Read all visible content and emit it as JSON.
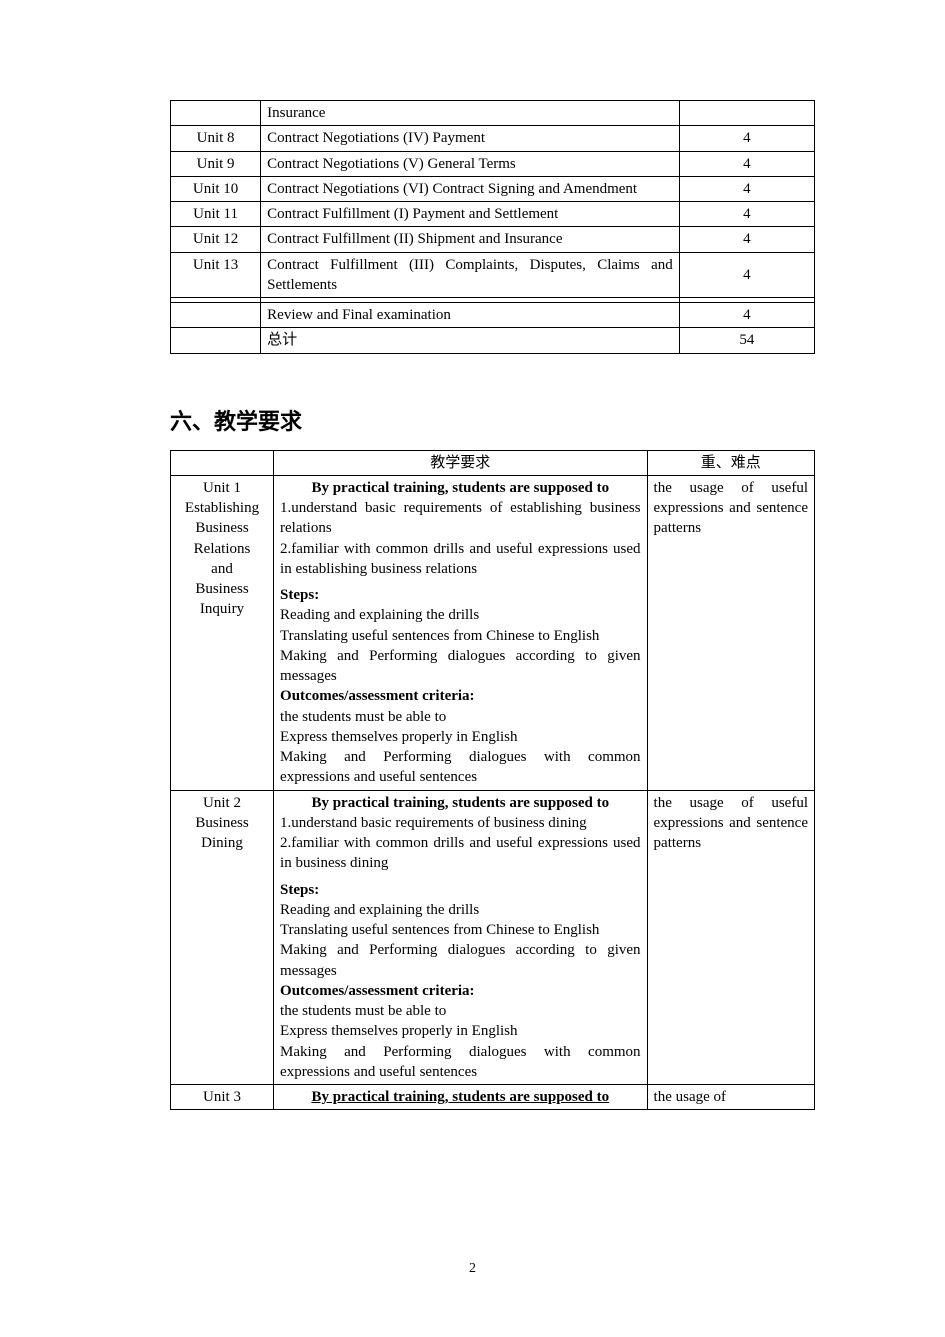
{
  "table1": {
    "rows": [
      {
        "c1": "",
        "c2": "Insurance",
        "c3": ""
      },
      {
        "c1": "Unit 8",
        "c2": "Contract Negotiations (IV) Payment",
        "c3": "4"
      },
      {
        "c1": "Unit 9",
        "c2": "Contract Negotiations (V) General Terms",
        "c3": "4"
      },
      {
        "c1": "Unit 10",
        "c2": "Contract Negotiations (VI) Contract Signing and Amendment",
        "c3": "4",
        "justify": true
      },
      {
        "c1": "Unit 11",
        "c2": "Contract Fulfillment (I) Payment and Settlement",
        "c3": "4",
        "justify": true
      },
      {
        "c1": "Unit 12",
        "c2": "Contract Fulfillment (II) Shipment and Insurance",
        "c3": "4",
        "justify": true
      },
      {
        "c1": "Unit 13",
        "c2": "Contract Fulfillment (III) Complaints, Disputes, Claims and Settlements",
        "c3": "4",
        "justify": true
      },
      {
        "c1": "",
        "c2": "",
        "c3": ""
      },
      {
        "c1": "",
        "c2": "Review and Final examination",
        "c3": "4"
      },
      {
        "c1": "",
        "c2": "总计",
        "c3": "54"
      }
    ]
  },
  "heading": "六、教学要求",
  "table2": {
    "head": {
      "c2": "教学要求",
      "c3": "重、难点"
    },
    "rows": [
      {
        "c1": [
          "Unit 1",
          "Establishing",
          "Business",
          "Relations",
          "and",
          "Business",
          "Inquiry"
        ],
        "title": "By practical training, students are supposed to",
        "body1": [
          "1.understand basic requirements of establishing business relations",
          "2.familiar with common drills and useful expressions used in establishing business relations"
        ],
        "steps_label": "Steps:",
        "steps": [
          "Reading and explaining the drills",
          "Translating useful sentences from Chinese to English",
          "Making and Performing dialogues according to given messages"
        ],
        "outcome_label": "Outcomes/assessment criteria:",
        "outcome": [
          "the students must be able to",
          "Express themselves properly in English",
          "Making and Performing dialogues with common expressions and useful sentences"
        ],
        "c3": "the usage of useful expressions and sentence patterns"
      },
      {
        "c1": [
          "Unit 2",
          "Business",
          "Dining"
        ],
        "title": "By practical training, students are supposed to",
        "body1": [
          "1.understand basic requirements of business dining",
          "2.familiar with common drills and useful expressions used in business dining"
        ],
        "steps_label": "Steps:",
        "steps": [
          "Reading and explaining the drills",
          "Translating useful sentences from Chinese to English",
          "Making and Performing dialogues according to given messages"
        ],
        "outcome_label": "Outcomes/assessment criteria:",
        "outcome": [
          "the students must be able to",
          "Express themselves properly in English",
          "Making and Performing dialogues with common expressions and useful sentences"
        ],
        "c3": "the usage of useful expressions and sentence patterns"
      },
      {
        "c1": [
          "Unit 3"
        ],
        "title": "By practical training, students are supposed to",
        "underline_title": true,
        "c3": "the usage of"
      }
    ]
  },
  "pagenum": "2"
}
